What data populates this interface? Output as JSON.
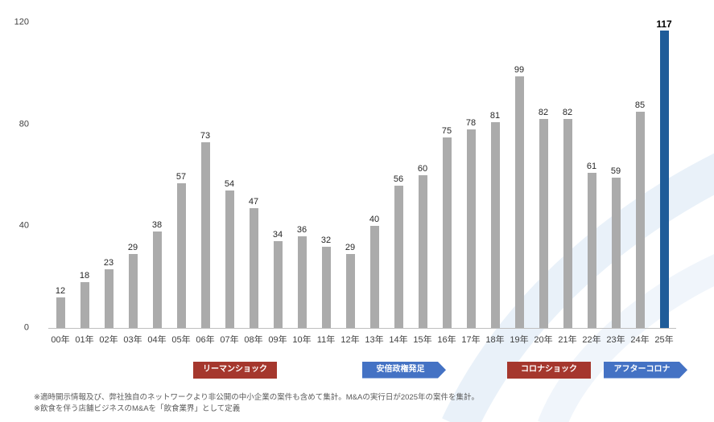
{
  "chart_data": {
    "type": "bar",
    "title": "",
    "xlabel": "",
    "ylabel": "",
    "categories": [
      "00年",
      "01年",
      "02年",
      "03年",
      "04年",
      "05年",
      "06年",
      "07年",
      "08年",
      "09年",
      "10年",
      "11年",
      "12年",
      "13年",
      "14年",
      "15年",
      "16年",
      "17年",
      "18年",
      "19年",
      "20年",
      "21年",
      "22年",
      "23年",
      "24年",
      "25年"
    ],
    "values": [
      12,
      18,
      23,
      29,
      38,
      57,
      73,
      54,
      47,
      34,
      36,
      32,
      29,
      40,
      56,
      60,
      75,
      78,
      81,
      99,
      82,
      82,
      61,
      59,
      85,
      117
    ],
    "ylim": [
      0,
      120
    ],
    "yticks": [
      0,
      40,
      80,
      120
    ],
    "grid": false,
    "legend": "none",
    "bar_color": "#ABABAB",
    "highlight_index": 25,
    "highlight_color": "#1F5C99"
  },
  "annotations": [
    {
      "id": "lehman-shock",
      "label": "リーマンショック",
      "color": "#A5372D",
      "shape": "rect",
      "start": 6,
      "span": 3
    },
    {
      "id": "abe-administration",
      "label": "安倍政権発足",
      "color": "#4472C4",
      "shape": "arrow",
      "start": 13,
      "span": 3
    },
    {
      "id": "corona-shock",
      "label": "コロナショック",
      "color": "#A5372D",
      "shape": "rect",
      "start": 19,
      "span": 3
    },
    {
      "id": "after-corona",
      "label": "アフターコロナ",
      "color": "#4472C4",
      "shape": "arrow",
      "start": 23,
      "span": 3
    }
  ],
  "footnotes": [
    "※適時開示情報及び、弊社独自のネットワークより非公開の中小企業の案件も含めて集計。M&Aの実行日が2025年の案件を集計。",
    "※飲食を伴う店舗ビジネスのM&Aを「飲食業界」として定義"
  ],
  "colors": {
    "axis_line": "#BFBFBF",
    "tick_text": "#404040",
    "footnote_text": "#595959",
    "watermark_blue": "#E9F1F9"
  }
}
